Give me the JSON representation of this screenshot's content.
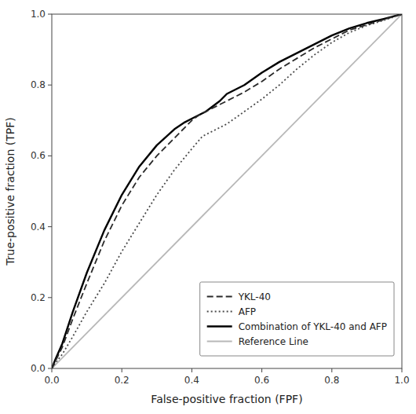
{
  "chart_data": {
    "type": "line",
    "xlabel": "False-positive fraction (FPF)",
    "ylabel": "True-positive fraction (TPF)",
    "xlim": [
      0.0,
      1.0
    ],
    "ylim": [
      0.0,
      1.0
    ],
    "xticks": [
      {
        "value": 0.0,
        "label": "0.0"
      },
      0.2,
      0.4,
      0.6,
      0.8,
      {
        "value": 1.0,
        "label": "1.0"
      }
    ],
    "yticks": [
      {
        "value": 0.0,
        "label": "0.0"
      },
      0.2,
      0.4,
      0.6,
      0.8,
      {
        "value": 1.0,
        "label": "1.0"
      }
    ],
    "grid": false,
    "legend": "lower right",
    "series": [
      {
        "name": "YKL-40",
        "color": "#2a2a2a",
        "line_style": "dashed",
        "x": [
          0.0,
          0.01,
          0.03,
          0.06,
          0.1,
          0.15,
          0.2,
          0.25,
          0.3,
          0.35,
          0.38,
          0.4,
          0.42,
          0.43,
          0.44,
          0.46,
          0.5,
          0.55,
          0.6,
          0.65,
          0.7,
          0.75,
          0.8,
          0.85,
          0.9,
          0.95,
          1.0
        ],
        "values": [
          0.0,
          0.02,
          0.06,
          0.14,
          0.24,
          0.36,
          0.46,
          0.54,
          0.6,
          0.65,
          0.68,
          0.7,
          0.715,
          0.72,
          0.725,
          0.735,
          0.755,
          0.78,
          0.81,
          0.845,
          0.875,
          0.905,
          0.93,
          0.955,
          0.97,
          0.985,
          1.0
        ]
      },
      {
        "name": "AFP",
        "color": "#4a4a4a",
        "line_style": "dotted",
        "x": [
          0.0,
          0.01,
          0.03,
          0.06,
          0.1,
          0.15,
          0.2,
          0.25,
          0.3,
          0.35,
          0.4,
          0.43,
          0.44,
          0.46,
          0.5,
          0.55,
          0.6,
          0.65,
          0.7,
          0.75,
          0.8,
          0.85,
          0.9,
          0.95,
          1.0
        ],
        "values": [
          0.0,
          0.015,
          0.04,
          0.09,
          0.16,
          0.24,
          0.33,
          0.41,
          0.49,
          0.56,
          0.62,
          0.655,
          0.66,
          0.67,
          0.69,
          0.725,
          0.76,
          0.8,
          0.845,
          0.885,
          0.92,
          0.948,
          0.968,
          0.983,
          1.0
        ]
      },
      {
        "name": "Combination of YKL-40 and AFP",
        "color": "#000000",
        "line_style": "solid",
        "x": [
          0.0,
          0.01,
          0.03,
          0.06,
          0.1,
          0.15,
          0.2,
          0.25,
          0.3,
          0.35,
          0.38,
          0.4,
          0.41,
          0.42,
          0.43,
          0.44,
          0.46,
          0.48,
          0.5,
          0.55,
          0.6,
          0.65,
          0.7,
          0.75,
          0.8,
          0.85,
          0.9,
          0.95,
          1.0
        ],
        "values": [
          0.0,
          0.025,
          0.07,
          0.16,
          0.27,
          0.39,
          0.49,
          0.57,
          0.63,
          0.675,
          0.695,
          0.705,
          0.71,
          0.715,
          0.72,
          0.725,
          0.74,
          0.755,
          0.775,
          0.8,
          0.835,
          0.865,
          0.89,
          0.915,
          0.94,
          0.96,
          0.975,
          0.987,
          1.0
        ]
      },
      {
        "name": "Reference Line",
        "color": "#b8b8b8",
        "line_style": "solid",
        "x": [
          0,
          1
        ],
        "values": [
          0,
          1
        ]
      }
    ]
  }
}
